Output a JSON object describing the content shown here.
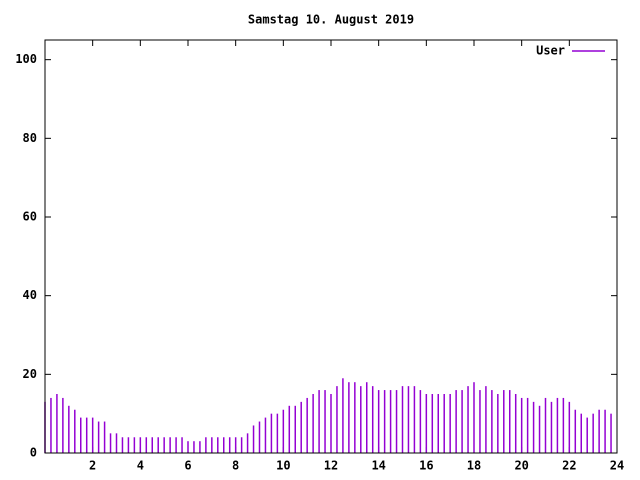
{
  "chart_data": {
    "type": "impulses",
    "title": "Samstag 10. August 2019",
    "x": [
      0,
      0.25,
      0.5,
      0.75,
      1,
      1.25,
      1.5,
      1.75,
      2,
      2.25,
      2.5,
      2.75,
      3,
      3.25,
      3.5,
      3.75,
      4,
      4.25,
      4.5,
      4.75,
      5,
      5.25,
      5.5,
      5.75,
      6,
      6.25,
      6.5,
      6.75,
      7,
      7.25,
      7.5,
      7.75,
      8,
      8.25,
      8.5,
      8.75,
      9,
      9.25,
      9.5,
      9.75,
      10,
      10.25,
      10.5,
      10.75,
      11,
      11.25,
      11.5,
      11.75,
      12,
      12.25,
      12.5,
      12.75,
      13,
      13.25,
      13.5,
      13.75,
      14,
      14.25,
      14.5,
      14.75,
      15,
      15.25,
      15.5,
      15.75,
      16,
      16.25,
      16.5,
      16.75,
      17,
      17.25,
      17.5,
      17.75,
      18,
      18.25,
      18.5,
      18.75,
      19,
      19.25,
      19.5,
      19.75,
      20,
      20.25,
      20.5,
      20.75,
      21,
      21.25,
      21.5,
      21.75,
      22,
      22.25,
      22.5,
      22.75,
      23,
      23.25,
      23.5,
      23.75
    ],
    "series": [
      {
        "name": "User",
        "color": "#9400d3",
        "values": [
          13,
          14,
          15,
          14,
          12,
          11,
          9,
          9,
          9,
          8,
          8,
          5,
          5,
          4,
          4,
          4,
          4,
          4,
          4,
          4,
          4,
          4,
          4,
          4,
          3,
          3,
          3,
          4,
          4,
          4,
          4,
          4,
          4,
          4,
          5,
          7,
          8,
          9,
          10,
          10,
          11,
          12,
          12,
          13,
          14,
          15,
          16,
          16,
          15,
          17,
          19,
          18,
          18,
          17,
          18,
          17,
          16,
          16,
          16,
          16,
          17,
          17,
          17,
          16,
          15,
          15,
          15,
          15,
          15,
          16,
          16,
          17,
          18,
          16,
          17,
          16,
          15,
          16,
          16,
          15,
          14,
          14,
          13,
          12,
          14,
          13,
          14,
          14,
          13,
          11,
          10,
          9,
          10,
          11,
          11,
          10
        ]
      }
    ],
    "xlim": [
      0,
      24
    ],
    "ylim": [
      0,
      105
    ],
    "xticks": [
      2,
      4,
      6,
      8,
      10,
      12,
      14,
      16,
      18,
      20,
      22,
      24
    ],
    "yticks": [
      0,
      20,
      40,
      60,
      80,
      100
    ],
    "legend": "top-right"
  }
}
